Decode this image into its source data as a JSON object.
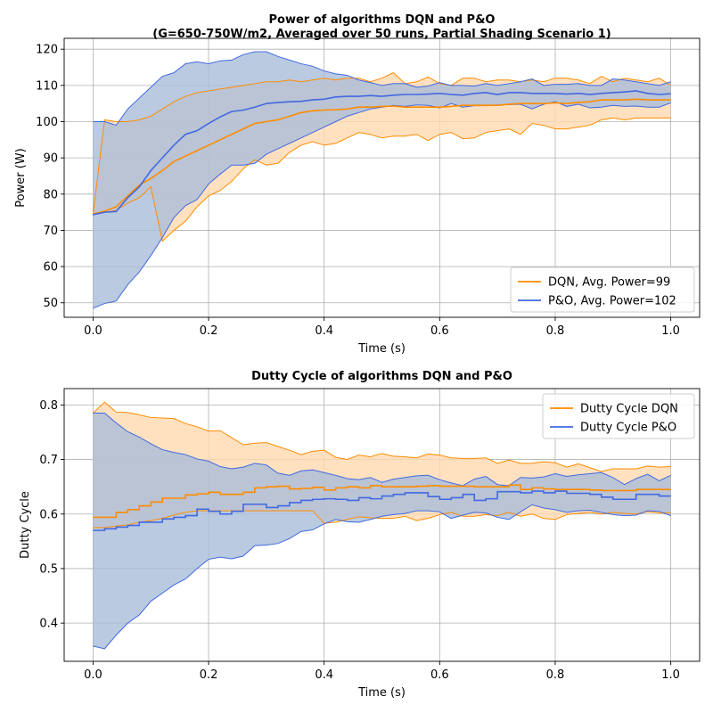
{
  "chart_data": [
    {
      "type": "line",
      "title": "Power of algorithms DQN and P&O",
      "subtitle": "(G=650-750W/m2, Averaged over 50 runs, Partial Shading Scenario 1)",
      "xlabel": "Time (s)",
      "ylabel": "Power (W)",
      "xlim": [
        -0.05,
        1.05
      ],
      "ylim": [
        46,
        123
      ],
      "xticks": [
        0.0,
        0.2,
        0.4,
        0.6,
        0.8,
        1.0
      ],
      "xtick_labels": [
        "0.0",
        "0.2",
        "0.4",
        "0.6",
        "0.8",
        "1.0"
      ],
      "yticks": [
        50,
        60,
        70,
        80,
        90,
        100,
        110,
        120
      ],
      "ytick_labels": [
        "50",
        "60",
        "70",
        "80",
        "90",
        "100",
        "110",
        "120"
      ],
      "grid": true,
      "legend_position": "lower-right",
      "x": [
        0.0,
        0.02,
        0.04,
        0.06,
        0.08,
        0.1,
        0.12,
        0.14,
        0.16,
        0.18,
        0.2,
        0.22,
        0.24,
        0.26,
        0.28,
        0.3,
        0.32,
        0.34,
        0.36,
        0.38,
        0.4,
        0.42,
        0.44,
        0.46,
        0.48,
        0.5,
        0.52,
        0.54,
        0.56,
        0.58,
        0.6,
        0.62,
        0.64,
        0.66,
        0.68,
        0.7,
        0.72,
        0.74,
        0.76,
        0.78,
        0.8,
        0.82,
        0.84,
        0.86,
        0.88,
        0.9,
        0.92,
        0.94,
        0.96,
        0.98,
        1.0
      ],
      "series": [
        {
          "name": "DQN, Avg. Power=99",
          "color": "#ff8c00",
          "fill": "#ffdab0",
          "mean": [
            74.5,
            75.3,
            76.5,
            79.5,
            82.5,
            84.3,
            86.5,
            89.0,
            90.5,
            92.0,
            93.5,
            95.0,
            96.5,
            98.0,
            99.5,
            100.0,
            100.5,
            101.5,
            102.5,
            103.0,
            103.2,
            103.3,
            103.5,
            104.0,
            104.0,
            104.2,
            104.3,
            104.0,
            104.0,
            104.0,
            104.0,
            104.2,
            104.5,
            104.5,
            104.5,
            104.5,
            104.8,
            105.0,
            105.0,
            105.0,
            105.2,
            105.0,
            105.3,
            105.5,
            106.0,
            106.0,
            106.0,
            106.2,
            106.0,
            106.0,
            106.0
          ],
          "upper": [
            74.5,
            100.5,
            100.0,
            100.0,
            100.5,
            101.5,
            103.5,
            105.5,
            107.0,
            108.0,
            108.5,
            109.0,
            109.5,
            110.0,
            110.5,
            111.0,
            111.0,
            111.5,
            111.0,
            111.5,
            112.0,
            111.5,
            112.0,
            112.0,
            111.0,
            112.0,
            113.5,
            110.5,
            111.0,
            112.3,
            110.5,
            110.0,
            112.0,
            112.0,
            111.0,
            111.5,
            111.5,
            111.0,
            111.5,
            111.0,
            112.0,
            112.0,
            111.5,
            110.5,
            112.5,
            111.0,
            112.0,
            111.5,
            111.0,
            112.0,
            110.0
          ],
          "lower": [
            74.5,
            75.0,
            75.5,
            77.5,
            79.0,
            82.0,
            67.0,
            70.0,
            72.5,
            76.5,
            79.5,
            81.0,
            83.5,
            87.0,
            89.5,
            88.0,
            88.5,
            91.5,
            93.5,
            94.5,
            93.5,
            94.0,
            95.5,
            97.0,
            96.5,
            95.5,
            96.0,
            96.0,
            96.5,
            94.8,
            96.5,
            97.0,
            95.3,
            95.5,
            97.0,
            97.5,
            98.0,
            96.5,
            99.5,
            99.0,
            98.0,
            98.0,
            98.5,
            99.0,
            100.5,
            101.0,
            100.5,
            101.0,
            101.0,
            101.0,
            101.0
          ]
        },
        {
          "name": "P&O, Avg. Power=102",
          "color": "#4169e1",
          "fill": "#a9bdd9",
          "mean": [
            74.3,
            75.0,
            75.2,
            79.0,
            82.0,
            86.5,
            90.0,
            93.5,
            96.5,
            97.5,
            99.5,
            101.3,
            102.8,
            103.2,
            104.0,
            105.0,
            105.3,
            105.5,
            105.6,
            106.0,
            106.2,
            106.8,
            107.0,
            107.0,
            107.2,
            107.0,
            107.3,
            107.5,
            107.5,
            107.6,
            107.8,
            107.5,
            107.3,
            107.8,
            108.0,
            107.5,
            108.0,
            108.0,
            107.8,
            107.8,
            107.8,
            107.6,
            107.8,
            107.5,
            107.8,
            108.0,
            108.2,
            108.5,
            107.8,
            107.5,
            107.7
          ],
          "upper": [
            100.0,
            100.0,
            99.0,
            103.5,
            106.5,
            109.5,
            112.5,
            113.5,
            116.0,
            116.5,
            116.0,
            116.8,
            117.0,
            118.5,
            119.3,
            119.3,
            118.0,
            117.0,
            116.0,
            115.3,
            114.0,
            113.2,
            112.8,
            111.5,
            110.8,
            110.0,
            110.5,
            110.5,
            109.5,
            109.8,
            110.8,
            110.0,
            110.0,
            109.8,
            110.5,
            110.0,
            110.5,
            111.0,
            111.8,
            110.0,
            110.3,
            110.3,
            110.5,
            110.0,
            110.0,
            111.8,
            111.5,
            111.0,
            110.5,
            110.0,
            111.0
          ],
          "lower": [
            48.5,
            49.8,
            50.5,
            55.0,
            58.5,
            63.0,
            68.0,
            73.5,
            76.8,
            78.5,
            82.8,
            85.5,
            88.0,
            88.0,
            88.5,
            91.0,
            92.5,
            94.0,
            95.5,
            97.0,
            98.5,
            100.0,
            101.5,
            102.5,
            103.5,
            104.0,
            104.5,
            104.2,
            104.6,
            104.5,
            103.8,
            105.0,
            104.0,
            104.4,
            104.4,
            104.6,
            104.7,
            104.8,
            103.5,
            104.8,
            105.5,
            104.2,
            104.8,
            103.8,
            104.0,
            104.5,
            104.2,
            104.3,
            104.0,
            104.0,
            105.2
          ]
        }
      ]
    },
    {
      "type": "line",
      "title": "Dutty Cycle of algorithms DQN and P&O",
      "xlabel": "Time (s)",
      "ylabel": "Dutty Cycle",
      "xlim": [
        -0.05,
        1.05
      ],
      "ylim": [
        0.33,
        0.83
      ],
      "xticks": [
        0.0,
        0.2,
        0.4,
        0.6,
        0.8,
        1.0
      ],
      "xtick_labels": [
        "0.0",
        "0.2",
        "0.4",
        "0.6",
        "0.8",
        "1.0"
      ],
      "yticks": [
        0.4,
        0.5,
        0.6,
        0.7,
        0.8
      ],
      "ytick_labels": [
        "0.4",
        "0.5",
        "0.6",
        "0.7",
        "0.8"
      ],
      "grid": true,
      "legend_position": "top-right",
      "x": [
        0.0,
        0.02,
        0.04,
        0.06,
        0.08,
        0.1,
        0.12,
        0.14,
        0.16,
        0.18,
        0.2,
        0.22,
        0.24,
        0.26,
        0.28,
        0.3,
        0.32,
        0.34,
        0.36,
        0.38,
        0.4,
        0.42,
        0.44,
        0.46,
        0.48,
        0.5,
        0.52,
        0.54,
        0.56,
        0.58,
        0.6,
        0.62,
        0.64,
        0.66,
        0.68,
        0.7,
        0.72,
        0.74,
        0.76,
        0.78,
        0.8,
        0.82,
        0.84,
        0.86,
        0.88,
        0.9,
        0.92,
        0.94,
        0.96,
        0.98,
        1.0
      ],
      "series": [
        {
          "name": "Dutty Cycle DQN",
          "color": "#ff8c00",
          "fill": "#ffdab0",
          "mean": [
            0.594,
            0.594,
            0.603,
            0.608,
            0.615,
            0.622,
            0.629,
            0.629,
            0.635,
            0.637,
            0.64,
            0.636,
            0.636,
            0.64,
            0.648,
            0.65,
            0.651,
            0.646,
            0.647,
            0.649,
            0.644,
            0.648,
            0.65,
            0.648,
            0.652,
            0.65,
            0.65,
            0.65,
            0.651,
            0.652,
            0.651,
            0.651,
            0.651,
            0.65,
            0.65,
            0.65,
            0.653,
            0.645,
            0.648,
            0.646,
            0.645,
            0.645,
            0.645,
            0.644,
            0.643,
            0.643,
            0.643,
            0.645,
            0.645,
            0.645,
            0.645
          ],
          "upper": [
            0.785,
            0.805,
            0.787,
            0.786,
            0.782,
            0.777,
            0.776,
            0.775,
            0.766,
            0.76,
            0.752,
            0.753,
            0.74,
            0.727,
            0.73,
            0.731,
            0.724,
            0.717,
            0.709,
            0.715,
            0.717,
            0.704,
            0.7,
            0.708,
            0.705,
            0.711,
            0.706,
            0.705,
            0.703,
            0.71,
            0.708,
            0.703,
            0.702,
            0.702,
            0.703,
            0.693,
            0.699,
            0.693,
            0.693,
            0.696,
            0.694,
            0.686,
            0.692,
            0.685,
            0.678,
            0.683,
            0.683,
            0.683,
            0.688,
            0.686,
            0.687
          ],
          "lower": [
            0.575,
            0.575,
            0.578,
            0.58,
            0.585,
            0.588,
            0.592,
            0.598,
            0.603,
            0.606,
            0.606,
            0.606,
            0.606,
            0.606,
            0.606,
            0.606,
            0.606,
            0.606,
            0.606,
            0.606,
            0.583,
            0.585,
            0.59,
            0.595,
            0.593,
            0.592,
            0.592,
            0.596,
            0.588,
            0.592,
            0.599,
            0.603,
            0.596,
            0.596,
            0.599,
            0.597,
            0.603,
            0.596,
            0.6,
            0.592,
            0.59,
            0.599,
            0.601,
            0.603,
            0.6,
            0.603,
            0.601,
            0.6,
            0.604,
            0.602,
            0.602
          ]
        },
        {
          "name": "Dutty Cycle P&O",
          "color": "#4169e1",
          "fill": "#a9bdd9",
          "mean": [
            0.57,
            0.573,
            0.576,
            0.579,
            0.585,
            0.585,
            0.591,
            0.594,
            0.597,
            0.609,
            0.605,
            0.6,
            0.605,
            0.618,
            0.618,
            0.612,
            0.615,
            0.621,
            0.625,
            0.627,
            0.628,
            0.627,
            0.625,
            0.63,
            0.628,
            0.633,
            0.636,
            0.639,
            0.639,
            0.632,
            0.627,
            0.63,
            0.636,
            0.625,
            0.628,
            0.641,
            0.641,
            0.639,
            0.642,
            0.639,
            0.642,
            0.638,
            0.638,
            0.636,
            0.631,
            0.627,
            0.627,
            0.636,
            0.636,
            0.633,
            0.633
          ],
          "upper": [
            0.785,
            0.785,
            0.767,
            0.751,
            0.741,
            0.729,
            0.718,
            0.713,
            0.709,
            0.701,
            0.697,
            0.687,
            0.683,
            0.686,
            0.693,
            0.69,
            0.675,
            0.671,
            0.679,
            0.681,
            0.676,
            0.671,
            0.665,
            0.663,
            0.667,
            0.658,
            0.664,
            0.667,
            0.67,
            0.671,
            0.663,
            0.657,
            0.652,
            0.664,
            0.669,
            0.654,
            0.652,
            0.667,
            0.666,
            0.668,
            0.674,
            0.669,
            0.672,
            0.674,
            0.676,
            0.667,
            0.654,
            0.665,
            0.673,
            0.661,
            0.671
          ],
          "lower": [
            0.358,
            0.353,
            0.378,
            0.4,
            0.415,
            0.44,
            0.455,
            0.47,
            0.481,
            0.5,
            0.517,
            0.521,
            0.518,
            0.523,
            0.542,
            0.543,
            0.546,
            0.555,
            0.568,
            0.571,
            0.582,
            0.59,
            0.586,
            0.585,
            0.59,
            0.596,
            0.599,
            0.601,
            0.606,
            0.606,
            0.604,
            0.592,
            0.598,
            0.603,
            0.602,
            0.594,
            0.59,
            0.604,
            0.617,
            0.611,
            0.608,
            0.603,
            0.606,
            0.607,
            0.603,
            0.599,
            0.597,
            0.598,
            0.606,
            0.605,
            0.597
          ]
        }
      ]
    }
  ]
}
